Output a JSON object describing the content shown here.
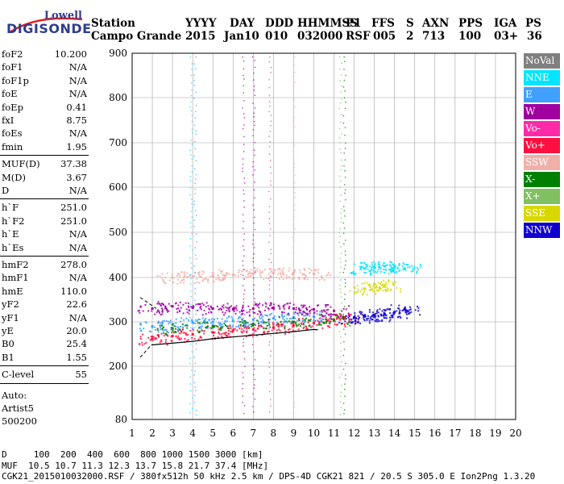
{
  "logo": {
    "line1": "Lowell",
    "line2": "DIGISONDE"
  },
  "header": {
    "labels": [
      "Station",
      "YYYY",
      "DAY",
      "DDD",
      "HHMMSS",
      "P1",
      "FFS",
      "S",
      "AXN",
      "PPS",
      "IGA",
      "PS"
    ],
    "values": [
      "Campo Grande",
      "2015",
      "Jan10",
      "010",
      "032000",
      "RSF",
      "005",
      "2",
      "713",
      "100",
      "03+",
      "36"
    ]
  },
  "params": {
    "group1": [
      {
        "k": "foF2",
        "v": "10.200"
      },
      {
        "k": "foF1",
        "v": "N/A"
      },
      {
        "k": "foF1p",
        "v": "N/A"
      },
      {
        "k": "foE",
        "v": "N/A"
      },
      {
        "k": "foEp",
        "v": "0.41"
      },
      {
        "k": "fxI",
        "v": "8.75"
      },
      {
        "k": "foEs",
        "v": "N/A"
      },
      {
        "k": "fmin",
        "v": "1.95"
      }
    ],
    "group2": [
      {
        "k": "MUF(D)",
        "v": "37.38"
      },
      {
        "k": "M(D)",
        "v": "3.67"
      },
      {
        "k": "D",
        "v": "N/A"
      }
    ],
    "group3": [
      {
        "k": "h`F",
        "v": "251.0"
      },
      {
        "k": "h`F2",
        "v": "251.0"
      },
      {
        "k": "h`E",
        "v": "N/A"
      },
      {
        "k": "h`Es",
        "v": "N/A"
      }
    ],
    "group4": [
      {
        "k": "hmF2",
        "v": "278.0"
      },
      {
        "k": "hmF1",
        "v": "N/A"
      },
      {
        "k": "hmE",
        "v": "110.0"
      },
      {
        "k": "yF2",
        "v": "22.6"
      },
      {
        "k": "yF1",
        "v": "N/A"
      },
      {
        "k": "yE",
        "v": "20.0"
      },
      {
        "k": "B0",
        "v": "25.4"
      },
      {
        "k": "B1",
        "v": "1.55"
      }
    ],
    "group5": [
      {
        "k": "C-level",
        "v": "55"
      }
    ],
    "auto": [
      "Auto:",
      "Artist5",
      "500200"
    ]
  },
  "legend": [
    {
      "label": "NoVal",
      "color": "#808080"
    },
    {
      "label": "NNE",
      "color": "#00e5ff"
    },
    {
      "label": "E",
      "color": "#3fa0ff"
    },
    {
      "label": "W",
      "color": "#a000a0"
    },
    {
      "label": "Vo-",
      "color": "#ff2aa8"
    },
    {
      "label": "Vo+",
      "color": "#ff1040"
    },
    {
      "label": "SSW",
      "color": "#f0b0a8"
    },
    {
      "label": "X-",
      "color": "#008000"
    },
    {
      "label": "X+",
      "color": "#80c060"
    },
    {
      "label": "SSE",
      "color": "#d8d800"
    },
    {
      "label": "NNW",
      "color": "#1000d0"
    }
  ],
  "footer": {
    "line1": "D     100  200  400  600  800 1000 1500 3000 [km]",
    "line2": "MUF  10.5 10.7 11.3 12.3 13.7 15.8 21.7 37.4 [MHz]",
    "line3": "CGK21_2015010032000.RSF / 380fx512h 50 kHz 2.5 km / DPS-4D CGK21 821 / 20.5 S 305.0 E Ion2Png 1.3.20"
  },
  "chart_data": {
    "type": "scatter",
    "title": "",
    "xlabel": "",
    "ylabel": "",
    "xlim": [
      1,
      20
    ],
    "ylim": [
      80,
      900
    ],
    "x_ticks": [
      "1",
      "2",
      "3",
      "4",
      "5",
      "6",
      "7",
      "8",
      "9",
      "10",
      "11",
      "12",
      "13",
      "14",
      "15",
      "16",
      "17",
      "18",
      "19",
      "20"
    ],
    "y_ticks": [
      "80",
      "200",
      "300",
      "400",
      "500",
      "600",
      "700",
      "800",
      "900"
    ],
    "grid": true,
    "legend_position": "right",
    "series": [
      {
        "name": "Vo+",
        "x": [
          2.0,
          3.0,
          4.0,
          5.0,
          6.0,
          7.0,
          8.0,
          9.0,
          10.0,
          11.0,
          11.5
        ],
        "y": [
          262,
          268,
          272,
          276,
          280,
          283,
          287,
          292,
          297,
          303,
          310
        ]
      },
      {
        "name": "E",
        "x": [
          2.0,
          3.0,
          4.0,
          5.0,
          6.0,
          7.0,
          8.0,
          9.0,
          10.0
        ],
        "y": [
          290,
          295,
          298,
          300,
          302,
          305,
          308,
          310,
          312
        ]
      },
      {
        "name": "W",
        "x": [
          2.0,
          3.0,
          4.0,
          5.0,
          6.0,
          7.0,
          8.0,
          9.0,
          10.0,
          11.0
        ],
        "y": [
          330,
          335,
          332,
          330,
          328,
          330,
          332,
          330,
          328,
          325
        ]
      },
      {
        "name": "SSW",
        "x": [
          3.0,
          4.0,
          5.0,
          6.0,
          7.0,
          8.0,
          9.0,
          10.0
        ],
        "y": [
          400,
          402,
          404,
          406,
          408,
          410,
          410,
          408
        ]
      },
      {
        "name": "NNW",
        "x": [
          12.0,
          12.5,
          13.0,
          13.5,
          14.0,
          14.5
        ],
        "y": [
          310,
          312,
          315,
          318,
          322,
          328
        ]
      },
      {
        "name": "NNE",
        "x": [
          12.5,
          13.0,
          13.5,
          14.0,
          14.5
        ],
        "y": [
          420,
          422,
          425,
          425,
          420
        ]
      },
      {
        "name": "SSE",
        "x": [
          12.5,
          13.0,
          13.5
        ],
        "y": [
          375,
          385,
          380
        ]
      },
      {
        "name": "X-",
        "x": [
          3.0,
          5.0,
          7.0,
          9.0,
          11.0
        ],
        "y": [
          285,
          290,
          295,
          300,
          305
        ]
      }
    ]
  }
}
